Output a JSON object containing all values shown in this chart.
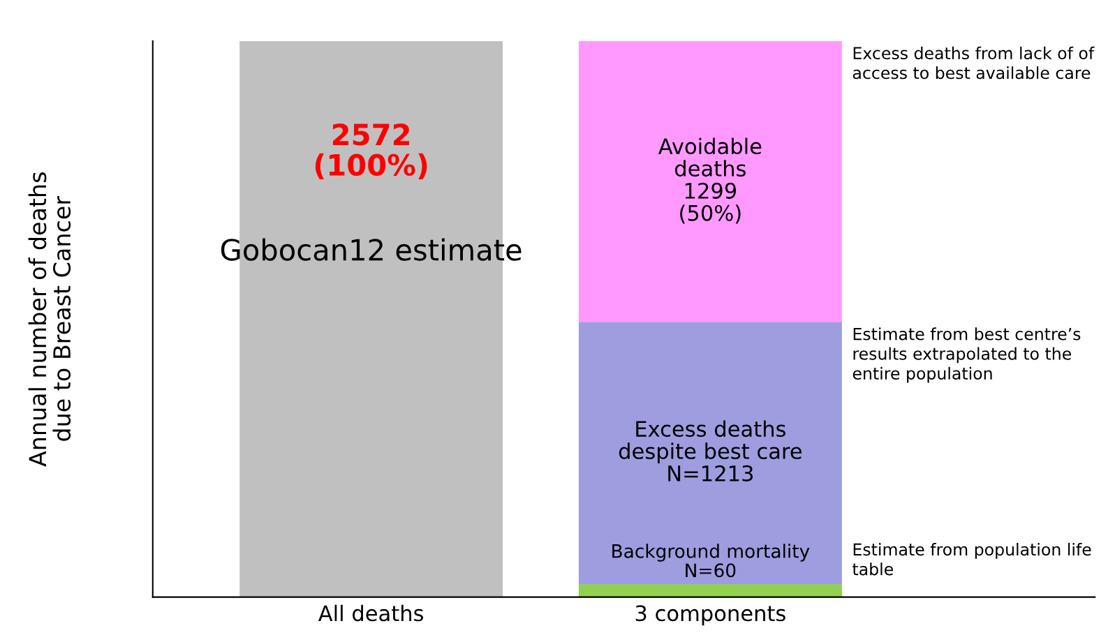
{
  "chart_data": {
    "type": "bar",
    "stacked": true,
    "ylabel": "Annual number of deaths\ndue to Breast Cancer",
    "categories": [
      "All deaths",
      "3 components"
    ],
    "series": [
      {
        "color": "#c0c0c0",
        "values": [
          2572,
          null
        ],
        "value_labels": [
          "2572\n(100%)",
          null
        ]
      },
      {
        "color": "#92d050",
        "values": [
          null,
          60
        ],
        "value_labels": [
          null,
          "Background mortality\nN=60"
        ]
      },
      {
        "color": "#9e9ddf",
        "values": [
          null,
          1213
        ],
        "value_labels": [
          null,
          "Excess deaths\ndespite best care\nN=1213"
        ]
      },
      {
        "color": "#ff99ff",
        "values": [
          null,
          1299
        ],
        "value_labels": [
          null,
          "Avoidable\ndeaths\n1299\n(50%)"
        ]
      }
    ],
    "annotations": [
      "Gobocan12 estimate",
      "Excess deaths from lack of of access to best available care",
      "Estimate from best centre’s results extrapolated to the entire population",
      "Estimate from population life table"
    ],
    "grid": false,
    "legend": false,
    "tick_labels": "x"
  }
}
